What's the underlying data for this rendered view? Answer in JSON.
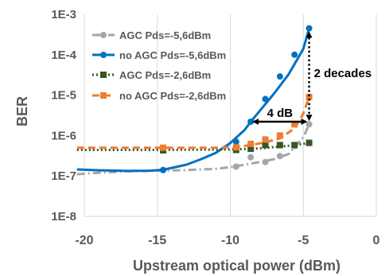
{
  "chart_data": {
    "type": "line",
    "xlabel": "Upstream optical power (dBm)",
    "ylabel": "BER",
    "y_scale": "log",
    "xlim": [
      -20,
      0
    ],
    "ylim": [
      1e-08,
      0.001
    ],
    "x_tick_labels": [
      "-20",
      "-15",
      "-10",
      "-5",
      "0"
    ],
    "x_tick_values": [
      -20,
      -15,
      -10,
      -5,
      0
    ],
    "y_tick_labels": [
      "1E-3",
      "1E-4",
      "1E-5",
      "1E-6",
      "1E-7",
      "1E-8"
    ],
    "y_tick_values": [
      0.001,
      0.0001,
      1e-05,
      1e-06,
      1e-07,
      1e-08
    ],
    "grid": "vertical",
    "legend_position": "top-left",
    "series": [
      {
        "name": "AGC Pds=-5,6dBm",
        "color": "#a6a6a6",
        "line_style": "dash-dot",
        "marker": "circle",
        "fit_x": [
          -20.5,
          -19,
          -17,
          -15,
          -13,
          -11,
          -10,
          -9,
          -8,
          -7,
          -6,
          -5,
          -4.6
        ],
        "fit_y": [
          1.1e-07,
          1.2e-07,
          1.3e-07,
          1.35e-07,
          1.4e-07,
          1.5e-07,
          1.65e-07,
          1.9e-07,
          2.2e-07,
          2.6e-07,
          3.5e-07,
          9e-07,
          1.9e-06
        ],
        "x": [
          -14.6,
          -9.6,
          -8.6,
          -7.6,
          -6.6,
          -5.6,
          -4.6
        ],
        "y": [
          1.4e-07,
          1.7e-07,
          2.9e-07,
          2.2e-07,
          3.1e-07,
          5.5e-07,
          1.9e-06
        ]
      },
      {
        "name": "no AGC Pds=-5,6dBm",
        "color": "#0070c0",
        "line_style": "solid",
        "marker": "circle",
        "fit_x": [
          -20.5,
          -19,
          -17,
          -15.5,
          -14.6,
          -13,
          -12,
          -11,
          -10,
          -9,
          -8.6,
          -8,
          -7,
          -6,
          -5,
          -4.6
        ],
        "fit_y": [
          1.45e-07,
          1.38e-07,
          1.33e-07,
          1.35e-07,
          1.42e-07,
          1.9e-07,
          2.6e-07,
          3.7e-07,
          6.5e-07,
          1.4e-06,
          2.2e-06,
          4e-06,
          1.1e-05,
          3.3e-05,
          0.00014,
          0.00045
        ],
        "x": [
          -14.6,
          -9.6,
          -8.6,
          -7.6,
          -6.6,
          -5.6,
          -4.6
        ],
        "y": [
          1.4e-07,
          7e-07,
          2.2e-06,
          8e-06,
          2.9e-05,
          0.0001,
          0.00045
        ]
      },
      {
        "name": "AGC Pds=-2,6dBm",
        "color": "#375623",
        "line_style": "dotted",
        "marker": "square",
        "fit_x": [
          -20.5,
          -15,
          -10,
          -8,
          -6,
          -4.6
        ],
        "fit_y": [
          4.4e-07,
          4.4e-07,
          4.5e-07,
          4.8e-07,
          5.6e-07,
          6.5e-07
        ],
        "x": [
          -14.6,
          -9.6,
          -8.6,
          -7.6,
          -6.6,
          -5.6,
          -4.6
        ],
        "y": [
          4.3e-07,
          4.4e-07,
          4.7e-07,
          5.8e-07,
          5.8e-07,
          5.8e-07,
          6.6e-07
        ]
      },
      {
        "name": "no AGC Pds=-2,6dBm",
        "color": "#ed7d31",
        "line_style": "dashed",
        "marker": "square",
        "fit_x": [
          -20.5,
          -15,
          -11,
          -9.6,
          -8.6,
          -7.6,
          -6.6,
          -5.6,
          -5,
          -4.6
        ],
        "fit_y": [
          5e-07,
          5e-07,
          5e-07,
          5.2e-07,
          5.8e-07,
          6.8e-07,
          8.5e-07,
          1.5e-06,
          3.5e-06,
          9e-06
        ],
        "x": [
          -14.6,
          -9.6,
          -8.6,
          -7.6,
          -6.6,
          -5.6,
          -4.6
        ],
        "y": [
          5e-07,
          5.1e-07,
          6.2e-07,
          8e-07,
          1e-06,
          1.9e-06,
          9e-06
        ]
      }
    ],
    "annotations": [
      {
        "text": "4 dB",
        "type": "horizontal-double-arrow",
        "x_from": -8.6,
        "x_to": -4.6,
        "y": 2.2e-06
      },
      {
        "text": "2 decades",
        "type": "vertical-double-arrow",
        "x": -4.6,
        "y_from": 0.00045,
        "y_to": 1.9e-06
      }
    ]
  }
}
